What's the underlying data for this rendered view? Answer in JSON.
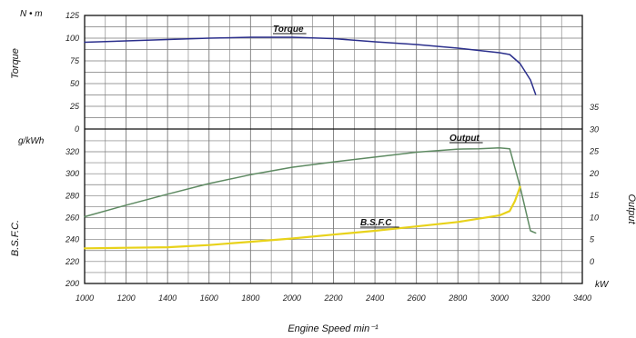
{
  "chart_data": {
    "type": "line",
    "x": {
      "label": "Engine Speed min⁻¹",
      "range": [
        1000,
        3400
      ],
      "ticks": [
        1000,
        1200,
        1400,
        1600,
        1800,
        2000,
        2200,
        2400,
        2600,
        2800,
        3000,
        3200,
        3400
      ],
      "tick_labels": [
        "1000",
        "1200",
        "1400",
        "1600",
        "1800",
        "2000",
        "2200",
        "2400",
        "2600",
        "2800",
        "3000",
        "3200",
        "3400"
      ]
    },
    "torque_axis": {
      "label": "Torque",
      "unit": "N • m",
      "range": [
        0,
        125
      ],
      "ticks": [
        0,
        25,
        50,
        75,
        100,
        125
      ],
      "tick_labels": [
        "0",
        "25",
        "50",
        "75",
        "100",
        "125"
      ]
    },
    "bsfc_axis": {
      "label": "B.S.F.C.",
      "unit": "g/kWh",
      "range": [
        200,
        320
      ],
      "ticks": [
        200,
        220,
        240,
        260,
        280,
        300,
        320
      ],
      "tick_labels": [
        "200",
        "220",
        "240",
        "260",
        "280",
        "300",
        "320"
      ]
    },
    "output_axis": {
      "label": "Output",
      "unit": "kW",
      "range": [
        0,
        35
      ],
      "ticks": [
        0,
        5,
        10,
        15,
        20,
        25,
        30,
        35
      ],
      "tick_labels": [
        "0",
        "5",
        "10",
        "15",
        "20",
        "25",
        "30",
        "35"
      ]
    },
    "grid": true,
    "series": [
      {
        "name": "Torque",
        "axis": "torque",
        "color": "#2b2f8c",
        "x": [
          1000,
          1200,
          1400,
          1600,
          1800,
          1900,
          2000,
          2200,
          2400,
          2600,
          2800,
          2900,
          3000,
          3050,
          3100,
          3150,
          3175
        ],
        "values": [
          95.5,
          97.0,
          98.5,
          100.0,
          101.0,
          101.0,
          101.0,
          99.5,
          96.0,
          93.0,
          89.0,
          86.5,
          84.0,
          82.0,
          72.0,
          54.0,
          38.0
        ]
      },
      {
        "name": "Output",
        "axis": "output",
        "color": "#5e8a62",
        "x": [
          1000,
          1200,
          1400,
          1600,
          1800,
          2000,
          2200,
          2400,
          2600,
          2800,
          2900,
          3000,
          3050,
          3100,
          3150,
          3175
        ],
        "values": [
          10.2,
          12.8,
          15.3,
          17.7,
          19.7,
          21.4,
          22.6,
          23.7,
          24.8,
          25.5,
          25.6,
          25.8,
          25.6,
          17.0,
          7.0,
          6.5
        ]
      },
      {
        "name": "B.S.F.C",
        "axis": "bsfc",
        "color": "#e8d21a",
        "x": [
          1000,
          1200,
          1400,
          1600,
          1800,
          2000,
          2200,
          2400,
          2600,
          2800,
          2900,
          3000,
          3050,
          3075,
          3100
        ],
        "values": [
          232,
          232.5,
          233,
          235,
          238,
          241,
          244.5,
          248,
          252,
          256,
          259,
          262,
          266,
          275,
          288
        ]
      }
    ],
    "annotations": [
      "Torque",
      "Output",
      "B.S.F.C"
    ]
  }
}
